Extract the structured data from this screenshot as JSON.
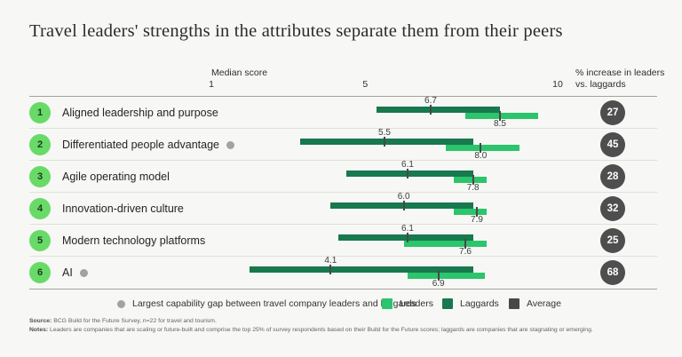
{
  "colors": {
    "background": "#f7f8f5",
    "leaders": "#2cc46c",
    "laggards": "#18784e",
    "average": "#484848",
    "number_circle": "#68da68",
    "pct_circle": "#4e4e4e",
    "gap_dot": "#a2a2a4",
    "divider": "#e0e0db",
    "strong_line": "#a3a39e"
  },
  "chart_data": {
    "type": "range-bar",
    "title": "Travel leaders' strengths in the attributes separate them from their peers",
    "axis": {
      "label": "Median score",
      "ticks": [
        1,
        5,
        10
      ],
      "min": 1,
      "max": 10,
      "right_header": "% increase in leaders\nvs. laggards"
    },
    "rows": [
      {
        "rank": 1,
        "label": "Aligned leadership and purpose",
        "largest_gap": false,
        "laggards": {
          "median": 6.7,
          "range": [
            5.3,
            8.5
          ]
        },
        "leaders": {
          "median": 8.5,
          "range": [
            7.6,
            9.5
          ]
        },
        "pct_increase": 27
      },
      {
        "rank": 2,
        "label": "Differentiated people advantage",
        "largest_gap": true,
        "laggards": {
          "median": 5.5,
          "range": [
            3.3,
            7.8
          ]
        },
        "leaders": {
          "median": 8.0,
          "range": [
            7.1,
            9.0
          ]
        },
        "pct_increase": 45
      },
      {
        "rank": 3,
        "label": "Agile operating model",
        "largest_gap": false,
        "laggards": {
          "median": 6.1,
          "range": [
            4.5,
            7.8
          ]
        },
        "leaders": {
          "median": 7.8,
          "range": [
            7.3,
            8.15
          ]
        },
        "pct_increase": 28
      },
      {
        "rank": 4,
        "label": "Innovation-driven culture",
        "largest_gap": false,
        "laggards": {
          "median": 6.0,
          "range": [
            4.1,
            7.8
          ]
        },
        "leaders": {
          "median": 7.9,
          "range": [
            7.3,
            8.15
          ]
        },
        "pct_increase": 32
      },
      {
        "rank": 5,
        "label": "Modern technology platforms",
        "largest_gap": false,
        "laggards": {
          "median": 6.1,
          "range": [
            4.3,
            7.8
          ]
        },
        "leaders": {
          "median": 7.6,
          "range": [
            6.0,
            8.15
          ]
        },
        "pct_increase": 25
      },
      {
        "rank": 6,
        "label": "AI",
        "largest_gap": true,
        "laggards": {
          "median": 4.1,
          "range": [
            2.0,
            7.8
          ]
        },
        "leaders": {
          "median": 6.9,
          "range": [
            6.1,
            8.1
          ]
        },
        "pct_increase": 68
      }
    ],
    "legend": {
      "gap_note": "Largest capability gap between travel company leaders and laggards",
      "series": [
        "Leaders",
        "Laggards",
        "Average"
      ]
    }
  },
  "footer": {
    "source_prefix": "Source:",
    "source_text": " BCG Build for the Future Survey, n=22 for travel and tourism.",
    "notes_prefix": "Notes:",
    "notes_text": " Leaders are companies that are scaling or future-built and comprise the top 25% of survey respondents based on their Build for the Future scores; laggards are companies that are stagnating or emerging."
  }
}
